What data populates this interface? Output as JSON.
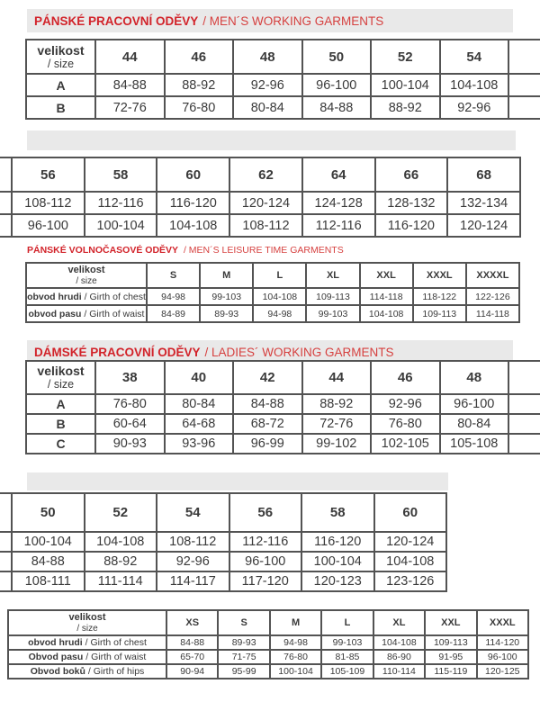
{
  "colors": {
    "accent_red_bold": "#d2232a",
    "accent_red_light": "#d6403f",
    "band_gray": "#e9e9e9",
    "table_border": "#4e4e4e",
    "text": "#3a3a3a",
    "background": "#ffffff"
  },
  "sections": {
    "mens_working": {
      "title_cz": "PÁNSKÉ PRACOVNÍ ODĚVY",
      "title_en": "/ MEN´S WORKING GARMENTS"
    },
    "mens_leisure": {
      "title_cz": "PÁNSKÉ VOLNOČASOVÉ ODĚVY",
      "title_en": "/ MEN´S LEISURE TIME GARMENTS"
    },
    "ladies_working": {
      "title_cz": "DÁMSKÉ PRACOVNÍ ODĚVY",
      "title_en": "/ LADIES´ WORKING GARMENTS"
    }
  },
  "tables": {
    "mens_working_1": {
      "corner": {
        "line1": "velikost",
        "line2": "/ size"
      },
      "columns": [
        "44",
        "46",
        "48",
        "50",
        "52",
        "54"
      ],
      "rows": [
        {
          "label": "A",
          "values": [
            "84-88",
            "88-92",
            "92-96",
            "96-100",
            "100-104",
            "104-108"
          ]
        },
        {
          "label": "B",
          "values": [
            "72-76",
            "76-80",
            "80-84",
            "84-88",
            "88-92",
            "92-96"
          ]
        }
      ]
    },
    "mens_working_2": {
      "columns": [
        "56",
        "58",
        "60",
        "62",
        "64",
        "66",
        "68"
      ],
      "rows": [
        {
          "values": [
            "108-112",
            "112-116",
            "116-120",
            "120-124",
            "124-128",
            "128-132",
            "132-134"
          ]
        },
        {
          "values": [
            "96-100",
            "100-104",
            "104-108",
            "108-112",
            "112-116",
            "116-120",
            "120-124"
          ]
        }
      ]
    },
    "mens_leisure": {
      "corner": {
        "line1": "velikost",
        "line2": "/ size"
      },
      "columns": [
        "S",
        "M",
        "L",
        "XL",
        "XXL",
        "XXXL",
        "XXXXL"
      ],
      "rows": [
        {
          "label_cz": "obvod hrudi",
          "label_en": "/ Girth of chest",
          "values": [
            "94-98",
            "99-103",
            "104-108",
            "109-113",
            "114-118",
            "118-122",
            "122-126"
          ]
        },
        {
          "label_cz": "obvod pasu",
          "label_en": "/ Girth of waist",
          "values": [
            "84-89",
            "89-93",
            "94-98",
            "99-103",
            "104-108",
            "109-113",
            "114-118"
          ]
        }
      ]
    },
    "ladies_working_1": {
      "corner": {
        "line1": "velikost",
        "line2": "/ size"
      },
      "columns": [
        "38",
        "40",
        "42",
        "44",
        "46",
        "48"
      ],
      "rows": [
        {
          "label": "A",
          "values": [
            "76-80",
            "80-84",
            "84-88",
            "88-92",
            "92-96",
            "96-100"
          ]
        },
        {
          "label": "B",
          "values": [
            "60-64",
            "64-68",
            "68-72",
            "72-76",
            "76-80",
            "80-84"
          ]
        },
        {
          "label": "C",
          "values": [
            "90-93",
            "93-96",
            "96-99",
            "99-102",
            "102-105",
            "105-108"
          ]
        }
      ]
    },
    "ladies_working_2": {
      "columns": [
        "50",
        "52",
        "54",
        "56",
        "58",
        "60"
      ],
      "rows": [
        {
          "values": [
            "100-104",
            "104-108",
            "108-112",
            "112-116",
            "116-120",
            "120-124"
          ]
        },
        {
          "values": [
            "84-88",
            "88-92",
            "92-96",
            "96-100",
            "100-104",
            "104-108"
          ]
        },
        {
          "values": [
            "108-111",
            "111-114",
            "114-117",
            "117-120",
            "120-123",
            "123-126"
          ]
        }
      ]
    },
    "ladies_measure": {
      "corner": {
        "line1": "velikost",
        "line2": "/ size"
      },
      "columns": [
        "XS",
        "S",
        "M",
        "L",
        "XL",
        "XXL",
        "XXXL"
      ],
      "rows": [
        {
          "label_cz": "obvod hrudi",
          "label_en": "/ Girth of chest",
          "values": [
            "84-88",
            "89-93",
            "94-98",
            "99-103",
            "104-108",
            "109-113",
            "114-120"
          ]
        },
        {
          "label_cz": "Obvod pasu",
          "label_en": "/ Girth of waist",
          "values": [
            "65-70",
            "71-75",
            "76-80",
            "81-85",
            "86-90",
            "91-95",
            "96-100"
          ]
        },
        {
          "label_cz": "Obvod boků",
          "label_en": "/ Girth of hips",
          "values": [
            "90-94",
            "95-99",
            "100-104",
            "105-109",
            "110-114",
            "115-119",
            "120-125"
          ]
        }
      ]
    }
  }
}
